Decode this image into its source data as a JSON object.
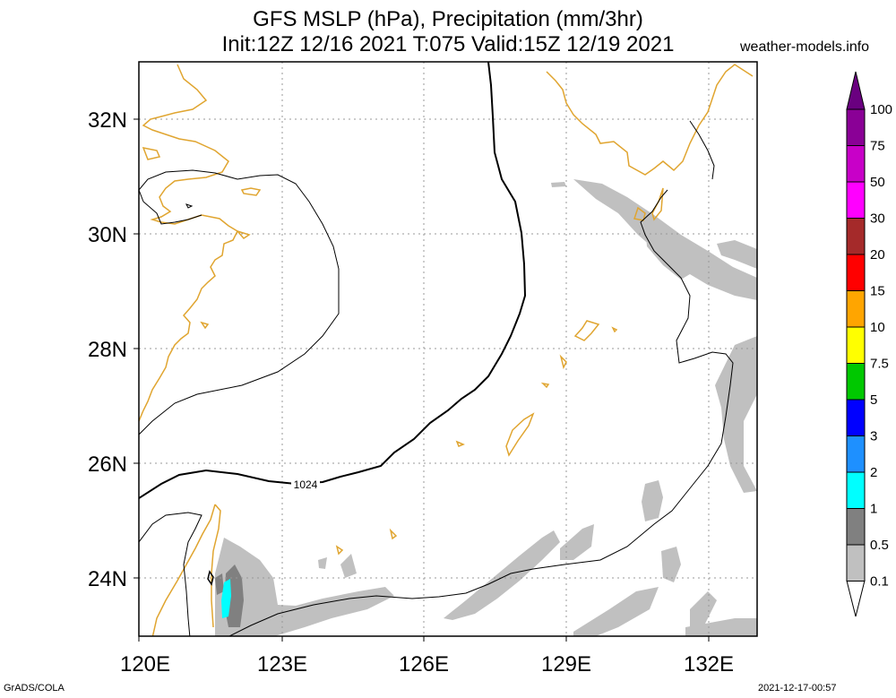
{
  "header": {
    "title_line1": "GFS MSLP (hPa), Precipitation (mm/3hr)",
    "title_line2": "Init:12Z 12/16 2021 T:075 Valid:15Z 12/19 2021",
    "site": "weather-models.info"
  },
  "footer": {
    "left": "GrADS/COLA",
    "right": "2021-12-17-00:57"
  },
  "map": {
    "lon_ticks": [
      "120E",
      "123E",
      "126E",
      "129E",
      "132E"
    ],
    "lat_ticks": [
      "32N",
      "30N",
      "28N",
      "26N",
      "24N"
    ],
    "isobar_label": "1024",
    "coastline_color": "#e0a530",
    "isobar_color": "#000000",
    "precip_light_color": "#c0c0c0",
    "precip_mid_color": "#808080",
    "precip_heavy_color": "#00ffff"
  },
  "legend": {
    "labels": [
      "100",
      "75",
      "50",
      "30",
      "20",
      "15",
      "10",
      "7.5",
      "5",
      "3",
      "2",
      "1",
      "0.5",
      "0.1"
    ],
    "colors": [
      "#8a0096",
      "#c800c8",
      "#ff00ff",
      "#a52a2a",
      "#ff0000",
      "#ffa500",
      "#ffff00",
      "#00c800",
      "#0000ff",
      "#1e90ff",
      "#00ffff",
      "#808080",
      "#c0c0c0"
    ],
    "top_color": "#6a0080"
  }
}
